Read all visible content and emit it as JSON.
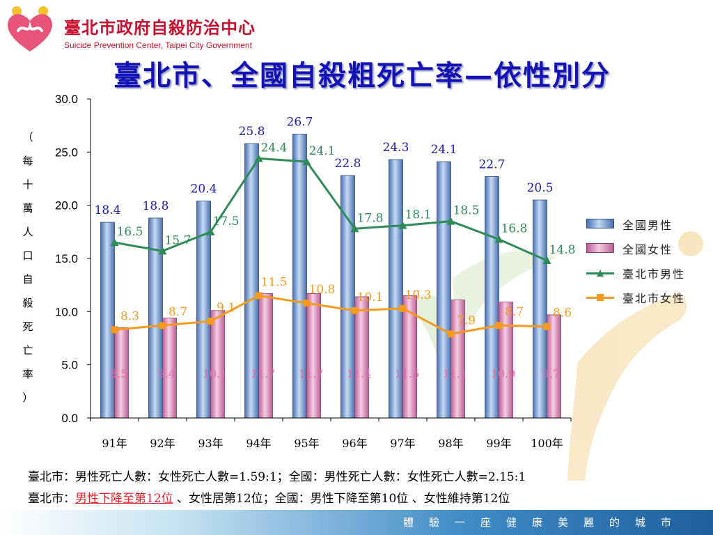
{
  "header": {
    "org_zh": "臺北市政府自殺防治中心",
    "org_en": "Suicide Prevention Center, Taipei City Government",
    "title": "臺北市、全國自殺粗死亡率—依性別分"
  },
  "chart_data": {
    "type": "bar",
    "ylabel": "（每十萬人口自殺死亡率）",
    "ylim": [
      0,
      30
    ],
    "yticks": [
      "0.0",
      "5.0",
      "10.0",
      "15.0",
      "20.0",
      "25.0",
      "30.0"
    ],
    "categories": [
      "91年",
      "92年",
      "93年",
      "94年",
      "95年",
      "96年",
      "97年",
      "98年",
      "99年",
      "100年"
    ],
    "series": [
      {
        "name": "全國男性",
        "kind": "bar",
        "color": "#6f95cf",
        "values": [
          18.4,
          18.8,
          20.4,
          25.8,
          26.7,
          22.8,
          24.3,
          24.1,
          22.7,
          20.5
        ],
        "labels": [
          "18.4",
          "18.8",
          "20.4",
          "25.8",
          "26.7",
          "22.8",
          "24.3",
          "24.1",
          "22.7",
          "20.5"
        ]
      },
      {
        "name": "全國女性",
        "kind": "bar",
        "color": "#d987b8",
        "values": [
          8.5,
          9.4,
          10.1,
          11.7,
          11.7,
          11.4,
          11.5,
          11.1,
          10.9,
          9.7
        ],
        "labels": [
          "8.5",
          "9.4",
          "10.1",
          "11.7",
          "11.7",
          "11.4",
          "11.5",
          "11.1",
          "10.9",
          "9.7"
        ]
      },
      {
        "name": "臺北市男性",
        "kind": "line",
        "color": "#2e8b57",
        "values": [
          16.5,
          15.7,
          17.5,
          24.4,
          24.1,
          17.8,
          18.1,
          18.5,
          16.8,
          14.8
        ],
        "labels": [
          "16.5",
          "15.7",
          "17.5",
          "24.4",
          "24.1",
          "17.8",
          "18.1",
          "18.5",
          "16.8",
          "14.8"
        ]
      },
      {
        "name": "臺北市女性",
        "kind": "line",
        "color": "#f59a1a",
        "values": [
          8.3,
          8.7,
          9.1,
          11.5,
          10.8,
          10.1,
          10.3,
          7.9,
          8.7,
          8.6
        ],
        "labels": [
          "8.3",
          "8.7",
          "9.1",
          "11.5",
          "10.8",
          "10.1",
          "10.3",
          "7.9",
          "8.7",
          "8.6"
        ]
      }
    ],
    "legend": "right"
  },
  "notes": {
    "line1": "臺北市：男性死亡人數：女性死亡人數=1.59:1；全國：男性死亡人數：女性死亡人數=2.15:1",
    "line2_prefix": "臺北市：",
    "line2_highlight": "男性下降至第12位",
    "line2_rest": " 、女性居第12位；全國：男性下降至第10位 、女性維持第12位"
  },
  "footer": {
    "slogan": "體驗一座健康美麗的城市"
  }
}
